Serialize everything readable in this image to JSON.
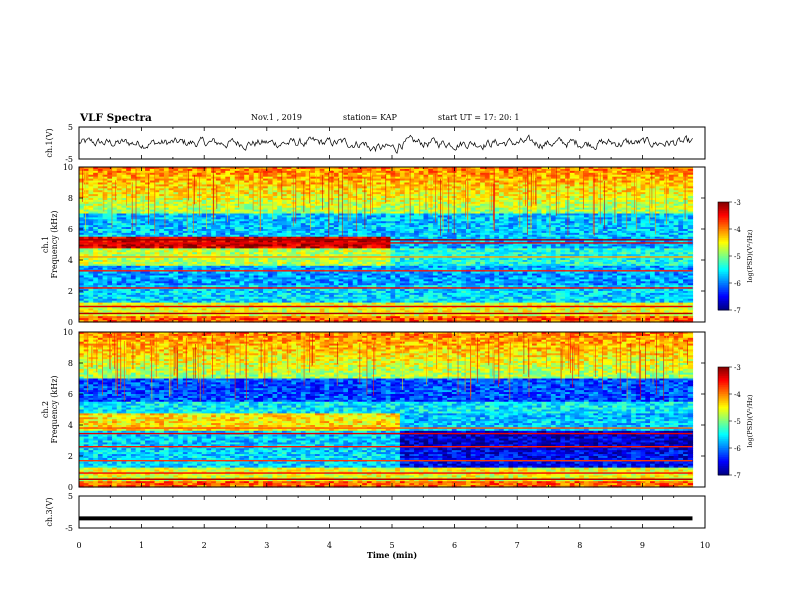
{
  "header": {
    "title": "VLF Spectra",
    "date": "Nov.1  , 2019",
    "station": "station= KAP",
    "start": "start  UT  =   17: 20: 1"
  },
  "chart_data": {
    "type": "heatmap",
    "x_axis": {
      "label": "Time  (min)",
      "range": [
        0,
        10
      ],
      "ticks": [
        "0",
        "1",
        "2",
        "3",
        "4",
        "5",
        "6",
        "7",
        "8",
        "9",
        "10"
      ]
    },
    "panels": [
      {
        "name": "ch.1(V)",
        "type": "line",
        "ylabel": "ch.1(V)",
        "ylim": [
          -5,
          5
        ],
        "yticks": [
          "5",
          "-5"
        ],
        "description_data": {
          "mean": 0,
          "amplitude": 2,
          "data_end_min": 9.8
        }
      },
      {
        "name": "ch.1 spectrum",
        "type": "heatmap",
        "ylabel_top": "ch.1",
        "ylabel": "Frequency  (kHz)",
        "ylim": [
          0,
          10
        ],
        "yticks": [
          "0",
          "2",
          "4",
          "6",
          "8",
          "10"
        ],
        "data_end_min": 9.8,
        "colorbar": {
          "label": "log(PSD)(V²/Hz)",
          "range": [
            -7,
            -3
          ],
          "ticks": [
            "-3",
            "-4",
            "-5",
            "-6",
            "-7"
          ]
        }
      },
      {
        "name": "ch.2 spectrum",
        "type": "heatmap",
        "ylabel_top": "ch.2",
        "ylabel": "Frequency  (kHz)",
        "ylim": [
          0,
          10
        ],
        "yticks": [
          "0",
          "2",
          "4",
          "6",
          "8",
          "10"
        ],
        "data_end_min": 9.8,
        "colorbar": {
          "label": "log(PSD)(V²/Hz)",
          "range": [
            -7,
            -3
          ],
          "ticks": [
            "-3",
            "-4",
            "-5",
            "-6",
            "-7"
          ]
        }
      },
      {
        "name": "ch.3(V)",
        "type": "line",
        "ylabel": "ch.3(V)",
        "ylim": [
          -5,
          5
        ],
        "yticks": [
          "5",
          "-5"
        ],
        "description_data": {
          "constant_value": -2,
          "data_end_min": 9.8
        }
      }
    ]
  }
}
